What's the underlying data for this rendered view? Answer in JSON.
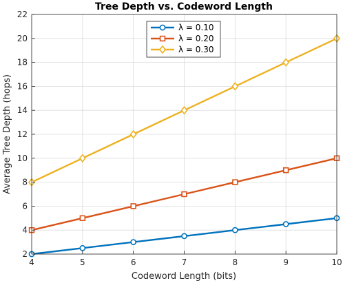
{
  "chart_data": {
    "type": "line",
    "title": "Tree Depth vs. Codeword Length",
    "xlabel": "Codeword Length (bits)",
    "ylabel": "Average Tree Depth (hops)",
    "x": [
      4,
      5,
      6,
      7,
      8,
      9,
      10
    ],
    "xlim": [
      4,
      10
    ],
    "ylim": [
      2,
      22
    ],
    "xticks": [
      "4",
      "5",
      "6",
      "7",
      "8",
      "9",
      "10"
    ],
    "yticks": [
      "2",
      "4",
      "6",
      "8",
      "10",
      "12",
      "14",
      "16",
      "18",
      "20",
      "22"
    ],
    "grid": true,
    "legend_position": "top-center",
    "series": [
      {
        "name": "λ = 0.10",
        "values": [
          2,
          2.5,
          3,
          3.5,
          4,
          4.5,
          5
        ],
        "color": "#0072BD",
        "marker": "circle"
      },
      {
        "name": "λ = 0.20",
        "values": [
          4,
          5,
          6,
          7,
          8,
          9,
          10
        ],
        "color": "#D95319",
        "marker": "square"
      },
      {
        "name": "λ = 0.30",
        "values": [
          8,
          10,
          12,
          14,
          16,
          18,
          20
        ],
        "color": "#EDB120",
        "marker": "diamond"
      }
    ]
  }
}
